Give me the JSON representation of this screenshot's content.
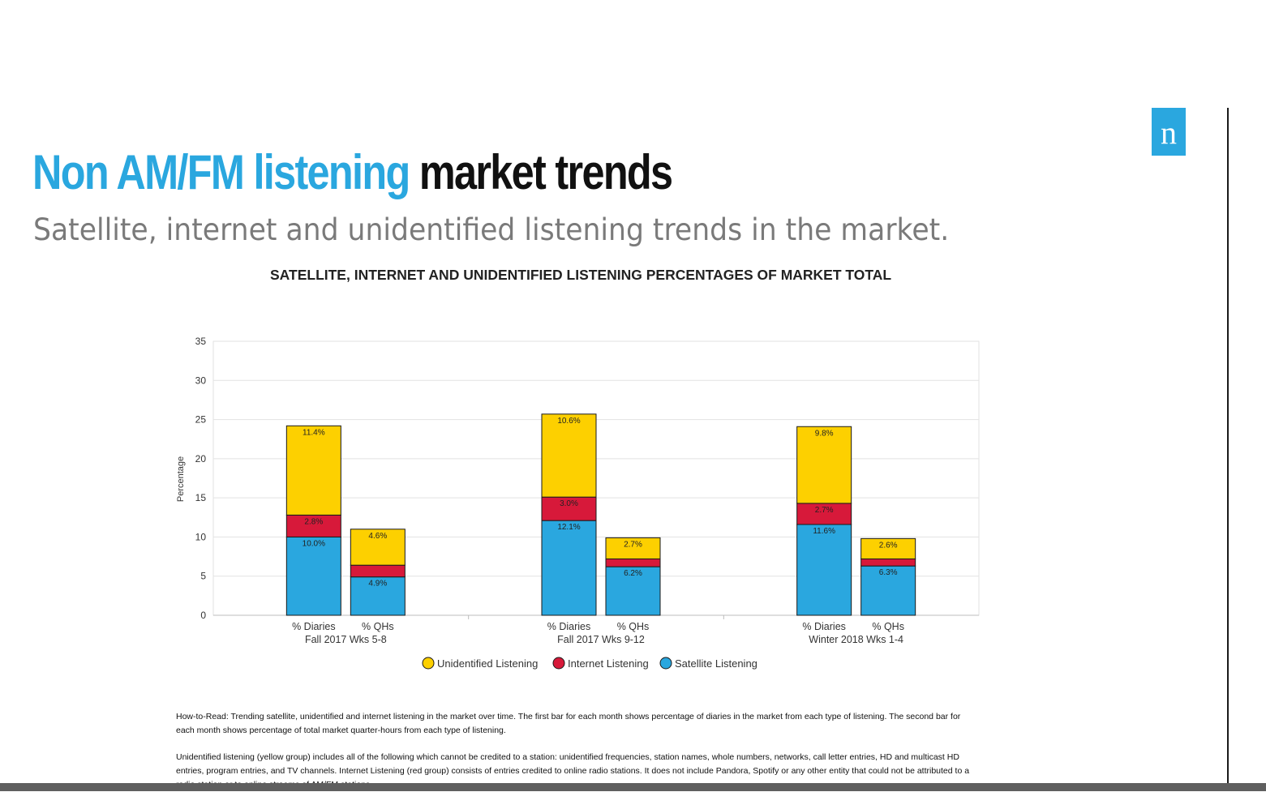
{
  "header": {
    "title_accent": "Non AM/FM listening",
    "title_rest": "market trends",
    "subtitle": "Satellite, internet and unidentified listening trends in the market.",
    "logo_letter": "n"
  },
  "colors": {
    "accent": "#2aa7df",
    "unidentified": "#fdd000",
    "internet": "#d7193a",
    "satellite": "#2aa7df"
  },
  "chart_data": {
    "type": "bar",
    "stacked": true,
    "title": "SATELLITE, INTERNET AND UNIDENTIFIED LISTENING PERCENTAGES OF MARKET TOTAL",
    "ylabel": "Percentage",
    "ylim": [
      0,
      35
    ],
    "yticks": [
      0,
      5,
      10,
      15,
      20,
      25,
      30,
      35
    ],
    "grid": true,
    "legend_position": "bottom",
    "groups": [
      {
        "label": "Fall 2017 Wks 5-8",
        "bars": [
          "% Diaries",
          "% QHs"
        ]
      },
      {
        "label": "Fall 2017 Wks 9-12",
        "bars": [
          "% Diaries",
          "% QHs"
        ]
      },
      {
        "label": "Winter 2018 Wks 1-4",
        "bars": [
          "% Diaries",
          "% QHs"
        ]
      }
    ],
    "series": [
      {
        "name": "Satellite Listening",
        "color": "#2aa7df",
        "values": [
          10.0,
          4.9,
          12.1,
          6.2,
          11.6,
          6.3
        ],
        "labels": [
          "10.0%",
          "4.9%",
          "12.1%",
          "6.2%",
          "11.6%",
          "6.3%"
        ]
      },
      {
        "name": "Internet Listening",
        "color": "#d7193a",
        "values": [
          2.8,
          1.5,
          3.0,
          1.0,
          2.7,
          0.9
        ],
        "labels": [
          "2.8%",
          "",
          "3.0%",
          "",
          "2.7%",
          ""
        ]
      },
      {
        "name": "Unidentified Listening",
        "color": "#fdd000",
        "values": [
          11.4,
          4.6,
          10.6,
          2.7,
          9.8,
          2.6
        ],
        "labels": [
          "11.4%",
          "4.6%",
          "10.6%",
          "2.7%",
          "9.8%",
          "2.6%"
        ]
      }
    ],
    "legend": [
      "Unidentified Listening",
      "Internet Listening",
      "Satellite Listening"
    ]
  },
  "notes": {
    "how_to_read": "How-to-Read: Trending satellite, unidentified and internet listening in the market over time. The first bar for each month shows percentage of diaries in the market from each type of listening. The second bar for each month shows percentage of total market quarter-hours from each type of listening.",
    "definitions": "Unidentified listening (yellow group) includes all of the following which cannot be credited to a station: unidentified frequencies, station names, whole numbers, networks, call letter entries, HD and multicast HD entries, program entries, and TV channels. Internet Listening (red group) consists of entries credited to online radio stations. It does not include Pandora, Spotify or any other entity that could not be attributed to a radio station or to online streams of AM/FM stations."
  }
}
